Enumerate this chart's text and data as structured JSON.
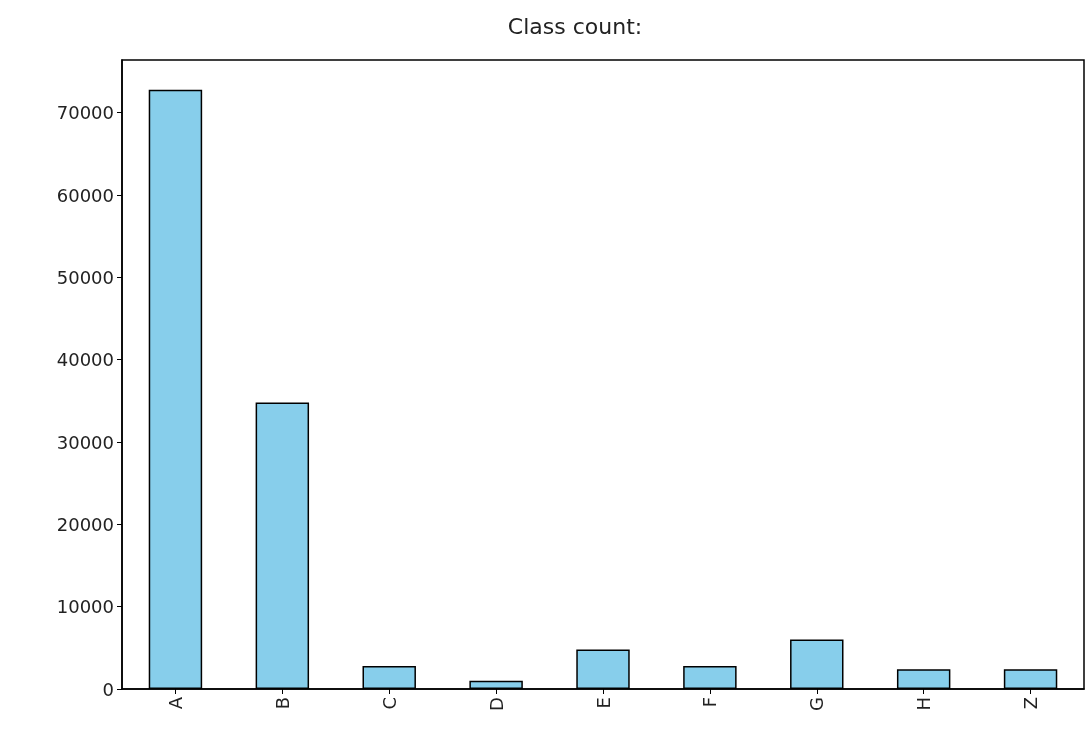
{
  "chart_data": {
    "type": "bar",
    "title": "Class count:",
    "categories": [
      "A",
      "B",
      "C",
      "D",
      "E",
      "F",
      "G",
      "H",
      "Z"
    ],
    "values": [
      72800,
      34800,
      2800,
      1000,
      4800,
      2800,
      6000,
      2400,
      2400
    ],
    "color": "#87ceeb",
    "ylim": [
      0,
      76400
    ],
    "yticks": [
      0,
      10000,
      20000,
      30000,
      40000,
      50000,
      60000,
      70000
    ],
    "grid": false
  }
}
